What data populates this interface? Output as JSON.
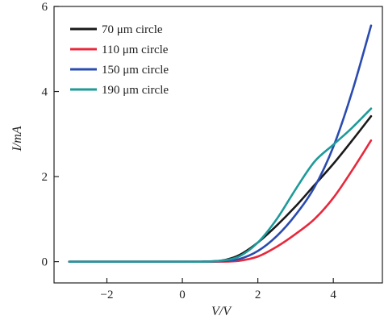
{
  "chart_data": {
    "type": "line",
    "xlabel": "V/V",
    "ylabel": "I/mA",
    "xlim": [
      -3.4,
      5.3
    ],
    "ylim": [
      -0.5,
      6.0
    ],
    "xticks": [
      -2,
      0,
      2,
      4
    ],
    "xtick_labels": [
      "−2",
      "0",
      "2",
      "4"
    ],
    "yticks": [
      0,
      2,
      4,
      6
    ],
    "ytick_labels": [
      "0",
      "2",
      "4",
      "6"
    ],
    "grid": false,
    "legend_position": "top-left",
    "series": [
      {
        "name": "70 μm circle",
        "color": "#1a1a1a",
        "x": [
          -3.0,
          0.0,
          0.5,
          1.0,
          1.3,
          1.6,
          2.0,
          2.5,
          3.0,
          3.5,
          4.0,
          4.5,
          5.0
        ],
        "y": [
          0.0,
          0.0,
          0.0,
          0.02,
          0.08,
          0.2,
          0.45,
          0.85,
          1.3,
          1.8,
          2.3,
          2.85,
          3.42
        ]
      },
      {
        "name": "110 μm circle",
        "color": "#e8283c",
        "x": [
          -3.0,
          0.0,
          0.5,
          1.0,
          1.5,
          2.0,
          2.5,
          3.0,
          3.5,
          4.0,
          4.5,
          5.0
        ],
        "y": [
          0.0,
          0.0,
          0.0,
          0.0,
          0.02,
          0.12,
          0.35,
          0.65,
          1.0,
          1.5,
          2.15,
          2.85
        ]
      },
      {
        "name": "150 μm circle",
        "color": "#2a4bb0",
        "x": [
          -3.0,
          0.0,
          0.5,
          1.0,
          1.5,
          2.0,
          2.5,
          3.0,
          3.5,
          4.0,
          4.5,
          5.0
        ],
        "y": [
          0.0,
          0.0,
          0.0,
          0.01,
          0.06,
          0.25,
          0.6,
          1.1,
          1.75,
          2.7,
          4.0,
          5.55
        ]
      },
      {
        "name": "190 μm circle",
        "color": "#1f9a9a",
        "x": [
          -3.0,
          0.0,
          0.5,
          1.0,
          1.5,
          2.0,
          2.5,
          3.0,
          3.5,
          4.0,
          4.5,
          5.0
        ],
        "y": [
          0.0,
          0.0,
          0.0,
          0.02,
          0.12,
          0.45,
          1.0,
          1.7,
          2.35,
          2.75,
          3.15,
          3.6
        ]
      }
    ]
  }
}
